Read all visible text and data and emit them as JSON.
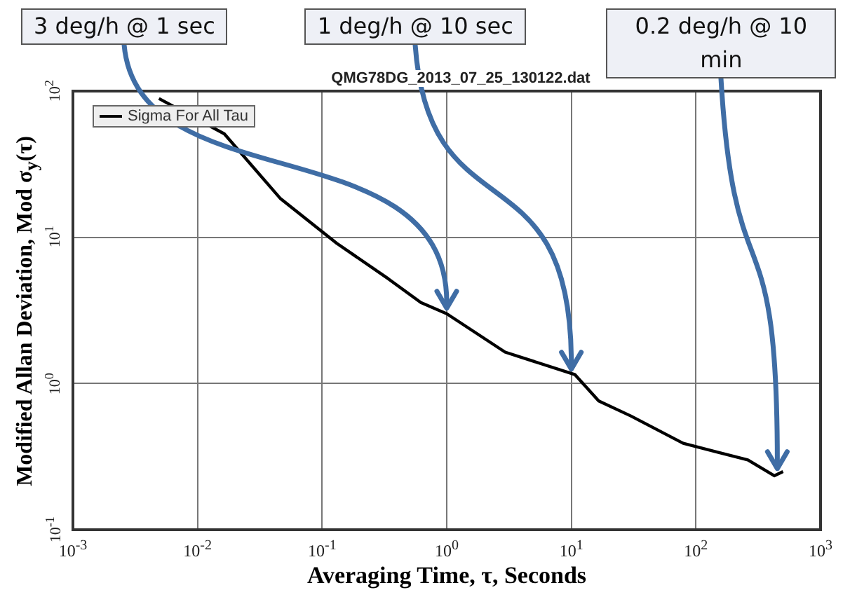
{
  "chart_data": {
    "type": "line",
    "title": "QMG78DG_2013_07_25_130122.dat",
    "xlabel": "Averaging Time, τ, Seconds",
    "ylabel": "Modified Allan Deviation, Mod σ$_{y}$(τ)",
    "x": [
      0.0049,
      0.0164,
      0.046,
      0.131,
      0.34,
      0.62,
      1,
      2.94,
      10.7,
      16.6,
      30,
      79,
      261,
      425,
      500
    ],
    "series": [
      {
        "name": "Sigma For All Tau",
        "color": "#000000",
        "values": [
          89,
          51,
          18.5,
          9.1,
          5.2,
          3.58,
          3.0,
          1.64,
          1.15,
          0.76,
          0.6,
          0.39,
          0.3,
          0.234,
          0.25
        ]
      }
    ],
    "log": "xy",
    "xlim": [
      0.001,
      1000
    ],
    "ylim": [
      0.1,
      100
    ],
    "xticks": [
      {
        "value": 0.001,
        "label": "10$^{-3}$"
      },
      {
        "value": 0.01,
        "label": "10$^{-2}$"
      },
      {
        "value": 0.1,
        "label": "10$^{-1}$"
      },
      {
        "value": 1,
        "label": "10$^{0}$"
      },
      {
        "value": 10,
        "label": "10$^{1}$"
      },
      {
        "value": 100,
        "label": "10$^{2}$"
      },
      {
        "value": 1000,
        "label": "10$^{3}$"
      }
    ],
    "yticks": [
      {
        "value": 0.1,
        "label": "10$^{-1}$"
      },
      {
        "value": 1,
        "label": "10$^{0}$"
      },
      {
        "value": 10,
        "label": "10$^{1}$"
      },
      {
        "value": 100,
        "label": "10$^{2}$"
      }
    ],
    "grid": true,
    "legend": "top left",
    "marker": "none",
    "line_style": "solid",
    "annotations": [
      {
        "text": "3 deg/h @ 1 sec",
        "x": 1,
        "y": 3
      },
      {
        "text": "1 deg/h @ 10 sec",
        "x": 10,
        "y": 1.15
      },
      {
        "text": "0.2 deg/h @ 10 min",
        "x": 450,
        "y": 0.24
      }
    ]
  }
}
